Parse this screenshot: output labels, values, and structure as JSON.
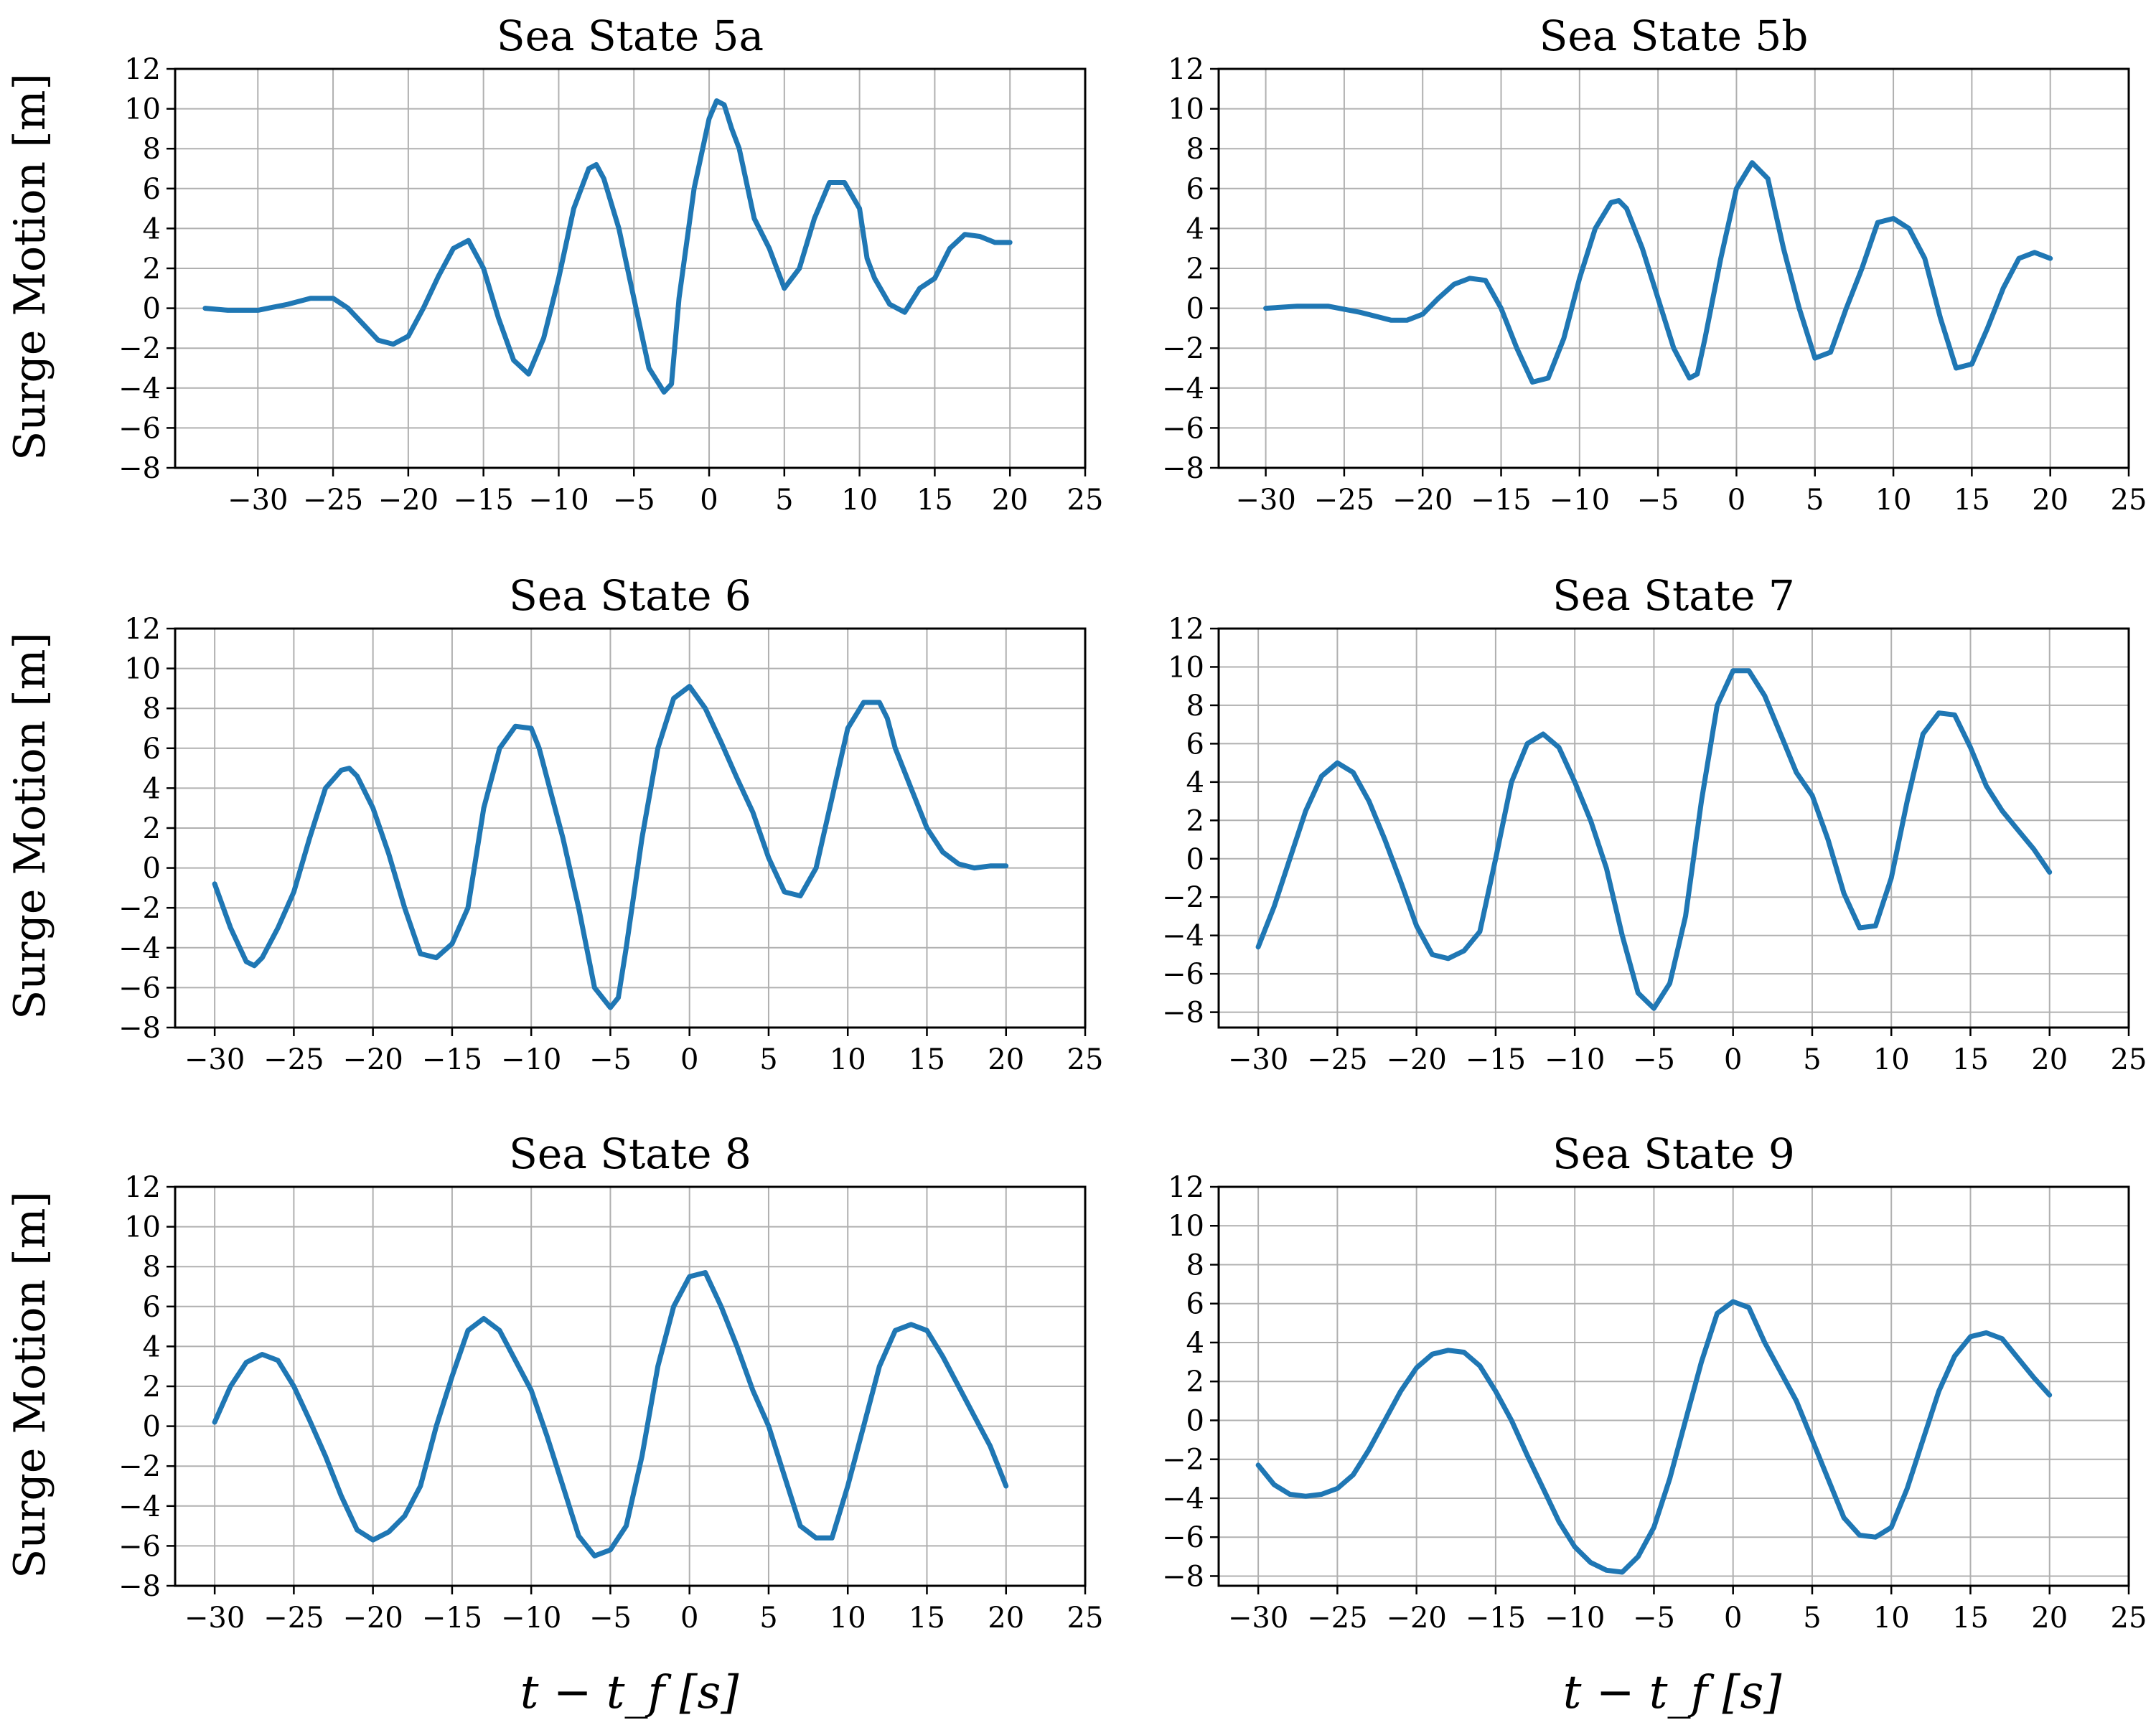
{
  "figure": {
    "ylabel": "Surge Motion [m]",
    "xlabel": "t − t_f [s]",
    "line_color": "#1f77b4"
  },
  "chart_data": [
    {
      "type": "line",
      "title": "Sea State 5a",
      "xlim": [
        -35.5,
        25
      ],
      "ylim": [
        -8,
        12
      ],
      "xticks": [
        -30,
        -25,
        -20,
        -15,
        -10,
        -5,
        0,
        5,
        10,
        15,
        20,
        25
      ],
      "yticks": [
        -8,
        -6,
        -4,
        -2,
        0,
        2,
        4,
        6,
        8,
        10,
        12
      ],
      "grid": true,
      "series": [
        {
          "x": [
            -33.5,
            -32,
            -30,
            -28,
            -26.5,
            -25,
            -24,
            -23,
            -22,
            -21,
            -20,
            -19,
            -18,
            -17,
            -16,
            -15,
            -14,
            -13,
            -12,
            -11,
            -10,
            -9,
            -8,
            -7.5,
            -7,
            -6,
            -5,
            -4,
            -3,
            -2.5,
            -2,
            -1,
            0,
            0.5,
            1,
            1.5,
            2,
            3,
            4,
            5,
            6,
            7,
            8,
            9,
            10,
            10.5,
            11,
            12,
            13,
            14,
            15,
            16,
            17,
            18,
            19,
            20
          ],
          "y": [
            0,
            -0.1,
            -0.1,
            0.2,
            0.5,
            0.5,
            0,
            -0.8,
            -1.6,
            -1.8,
            -1.4,
            0,
            1.6,
            3.0,
            3.4,
            2.0,
            -0.5,
            -2.6,
            -3.3,
            -1.5,
            1.5,
            5.0,
            7.0,
            7.2,
            6.5,
            4.0,
            0.5,
            -3.0,
            -4.2,
            -3.8,
            0.5,
            6.0,
            9.5,
            10.4,
            10.2,
            9.0,
            8.0,
            4.5,
            3.0,
            1.0,
            2.0,
            4.5,
            6.3,
            6.3,
            5.0,
            2.5,
            1.5,
            0.2,
            -0.2,
            1.0,
            1.5,
            3.0,
            3.7,
            3.6,
            3.3,
            3.3
          ]
        }
      ]
    },
    {
      "type": "line",
      "title": "Sea State 5b",
      "xlim": [
        -33,
        25
      ],
      "ylim": [
        -8,
        12
      ],
      "xticks": [
        -30,
        -25,
        -20,
        -15,
        -10,
        -5,
        0,
        5,
        10,
        15,
        20,
        25
      ],
      "yticks": [
        -8,
        -6,
        -4,
        -2,
        0,
        2,
        4,
        6,
        8,
        10,
        12
      ],
      "grid": true,
      "series": [
        {
          "x": [
            -30,
            -28,
            -26,
            -24,
            -22,
            -21,
            -20,
            -19,
            -18,
            -17,
            -16,
            -15,
            -14,
            -13,
            -12,
            -11,
            -10,
            -9,
            -8,
            -7.5,
            -7,
            -6,
            -5,
            -4,
            -3,
            -2.5,
            -2,
            -1,
            0,
            1,
            2,
            3,
            4,
            5,
            6,
            7,
            8,
            9,
            10,
            11,
            12,
            13,
            14,
            15,
            16,
            17,
            18,
            19,
            20
          ],
          "y": [
            0,
            0.1,
            0.1,
            -0.2,
            -0.6,
            -0.6,
            -0.3,
            0.5,
            1.2,
            1.5,
            1.4,
            0,
            -2.0,
            -3.7,
            -3.5,
            -1.5,
            1.5,
            4.0,
            5.3,
            5.4,
            5.0,
            3.0,
            0.5,
            -2.0,
            -3.5,
            -3.3,
            -1.5,
            2.5,
            6.0,
            7.3,
            6.5,
            3.0,
            0,
            -2.5,
            -2.2,
            0,
            2.0,
            4.3,
            4.5,
            4.0,
            2.5,
            -0.5,
            -3.0,
            -2.8,
            -1.0,
            1.0,
            2.5,
            2.8,
            2.5
          ]
        }
      ]
    },
    {
      "type": "line",
      "title": "Sea State 6",
      "xlim": [
        -32.5,
        25
      ],
      "ylim": [
        -8,
        12
      ],
      "xticks": [
        -30,
        -25,
        -20,
        -15,
        -10,
        -5,
        0,
        5,
        10,
        15,
        20,
        25
      ],
      "yticks": [
        -8,
        -6,
        -4,
        -2,
        0,
        2,
        4,
        6,
        8,
        10,
        12
      ],
      "grid": true,
      "series": [
        {
          "x": [
            -30,
            -29,
            -28,
            -27.5,
            -27,
            -26,
            -25,
            -24,
            -23,
            -22,
            -21.5,
            -21,
            -20,
            -19,
            -18,
            -17,
            -16,
            -15,
            -14,
            -13,
            -12,
            -11,
            -10,
            -9.5,
            -9,
            -8,
            -7,
            -6,
            -5,
            -4.5,
            -4,
            -3,
            -2,
            -1,
            0,
            1,
            2,
            3,
            4,
            5,
            6,
            7,
            8,
            9,
            10,
            11,
            12,
            12.5,
            13,
            14,
            15,
            16,
            17,
            18,
            19,
            20
          ],
          "y": [
            -0.8,
            -3.0,
            -4.7,
            -4.9,
            -4.5,
            -3.0,
            -1.2,
            1.5,
            4.0,
            4.9,
            5.0,
            4.6,
            3.0,
            0.7,
            -2.0,
            -4.3,
            -4.5,
            -3.8,
            -2.0,
            3.0,
            6.0,
            7.1,
            7.0,
            6.0,
            4.5,
            1.5,
            -2.0,
            -6.0,
            -7.0,
            -6.5,
            -4.0,
            1.5,
            6.0,
            8.5,
            9.1,
            8.0,
            6.3,
            4.5,
            2.8,
            0.5,
            -1.2,
            -1.4,
            0,
            3.5,
            7.0,
            8.3,
            8.3,
            7.5,
            6.0,
            4.0,
            2.0,
            0.8,
            0.2,
            0,
            0.1,
            0.1
          ]
        }
      ]
    },
    {
      "type": "line",
      "title": "Sea State 7",
      "xlim": [
        -32.5,
        25
      ],
      "ylim": [
        -8.8,
        12
      ],
      "xticks": [
        -30,
        -25,
        -20,
        -15,
        -10,
        -5,
        0,
        5,
        10,
        15,
        20,
        25
      ],
      "yticks": [
        -8,
        -6,
        -4,
        -2,
        0,
        2,
        4,
        6,
        8,
        10,
        12
      ],
      "grid": true,
      "series": [
        {
          "x": [
            -30,
            -29,
            -28,
            -27,
            -26,
            -25,
            -24,
            -23,
            -22,
            -21,
            -20,
            -19,
            -18,
            -17,
            -16,
            -15,
            -14,
            -13,
            -12,
            -11,
            -10,
            -9,
            -8,
            -7,
            -6,
            -5,
            -4,
            -3,
            -2,
            -1,
            0,
            1,
            2,
            3,
            4,
            5,
            6,
            7,
            8,
            9,
            10,
            11,
            12,
            13,
            14,
            15,
            16,
            17,
            18,
            19,
            20
          ],
          "y": [
            -4.6,
            -2.5,
            0,
            2.5,
            4.3,
            5.0,
            4.5,
            3.0,
            1.0,
            -1.2,
            -3.5,
            -5.0,
            -5.2,
            -4.8,
            -3.8,
            0,
            4.0,
            6.0,
            6.5,
            5.8,
            4.0,
            2.0,
            -0.5,
            -4.0,
            -7.0,
            -7.8,
            -6.5,
            -3.0,
            3.0,
            8.0,
            9.8,
            9.8,
            8.5,
            6.5,
            4.5,
            3.3,
            1.0,
            -1.8,
            -3.6,
            -3.5,
            -1.0,
            3.0,
            6.5,
            7.6,
            7.5,
            5.8,
            3.8,
            2.5,
            1.5,
            0.5,
            -0.7
          ]
        }
      ]
    },
    {
      "type": "line",
      "title": "Sea State 8",
      "xlim": [
        -32.5,
        25
      ],
      "ylim": [
        -8,
        12
      ],
      "xticks": [
        -30,
        -25,
        -20,
        -15,
        -10,
        -5,
        0,
        5,
        10,
        15,
        20,
        25
      ],
      "yticks": [
        -8,
        -6,
        -4,
        -2,
        0,
        2,
        4,
        6,
        8,
        10,
        12
      ],
      "grid": true,
      "series": [
        {
          "x": [
            -30,
            -29,
            -28,
            -27,
            -26,
            -25,
            -24,
            -23,
            -22,
            -21,
            -20,
            -19,
            -18,
            -17,
            -16,
            -15,
            -14,
            -13,
            -12,
            -11,
            -10,
            -9,
            -8,
            -7,
            -6,
            -5,
            -4,
            -3,
            -2,
            -1,
            0,
            1,
            2,
            3,
            4,
            5,
            6,
            7,
            8,
            9,
            10,
            11,
            12,
            13,
            14,
            15,
            16,
            17,
            18,
            19,
            20
          ],
          "y": [
            0.2,
            2.0,
            3.2,
            3.6,
            3.3,
            2.0,
            0.3,
            -1.5,
            -3.5,
            -5.2,
            -5.7,
            -5.3,
            -4.5,
            -3.0,
            0,
            2.5,
            4.8,
            5.4,
            4.8,
            3.3,
            1.8,
            -0.5,
            -3.0,
            -5.5,
            -6.5,
            -6.2,
            -5.0,
            -1.5,
            3.0,
            6.0,
            7.5,
            7.7,
            6.0,
            4.0,
            1.8,
            0,
            -2.5,
            -5.0,
            -5.6,
            -5.6,
            -3.0,
            0,
            3.0,
            4.8,
            5.1,
            4.8,
            3.5,
            2.0,
            0.5,
            -1.0,
            -3.0
          ]
        }
      ]
    },
    {
      "type": "line",
      "title": "Sea State 9",
      "xlim": [
        -32.5,
        25
      ],
      "ylim": [
        -8.5,
        12
      ],
      "xticks": [
        -30,
        -25,
        -20,
        -15,
        -10,
        -5,
        0,
        5,
        10,
        15,
        20,
        25
      ],
      "yticks": [
        -8,
        -6,
        -4,
        -2,
        0,
        2,
        4,
        6,
        8,
        10,
        12
      ],
      "grid": true,
      "series": [
        {
          "x": [
            -30,
            -29,
            -28,
            -27,
            -26,
            -25,
            -24,
            -23,
            -22,
            -21,
            -20,
            -19,
            -18,
            -17,
            -16,
            -15,
            -14,
            -13,
            -12,
            -11,
            -10,
            -9,
            -8,
            -7,
            -6,
            -5,
            -4,
            -3,
            -2,
            -1,
            0,
            1,
            2,
            3,
            4,
            5,
            6,
            7,
            8,
            9,
            10,
            11,
            12,
            13,
            14,
            15,
            16,
            17,
            18,
            19,
            20
          ],
          "y": [
            -2.3,
            -3.3,
            -3.8,
            -3.9,
            -3.8,
            -3.5,
            -2.8,
            -1.5,
            0,
            1.5,
            2.7,
            3.4,
            3.6,
            3.5,
            2.8,
            1.5,
            0,
            -1.8,
            -3.5,
            -5.2,
            -6.5,
            -7.3,
            -7.7,
            -7.8,
            -7.0,
            -5.5,
            -3.0,
            0,
            3.0,
            5.5,
            6.1,
            5.8,
            4.0,
            2.5,
            1.0,
            -1.0,
            -3.0,
            -5.0,
            -5.9,
            -6.0,
            -5.5,
            -3.5,
            -1.0,
            1.5,
            3.3,
            4.3,
            4.5,
            4.2,
            3.2,
            2.2,
            1.3
          ]
        }
      ]
    }
  ]
}
